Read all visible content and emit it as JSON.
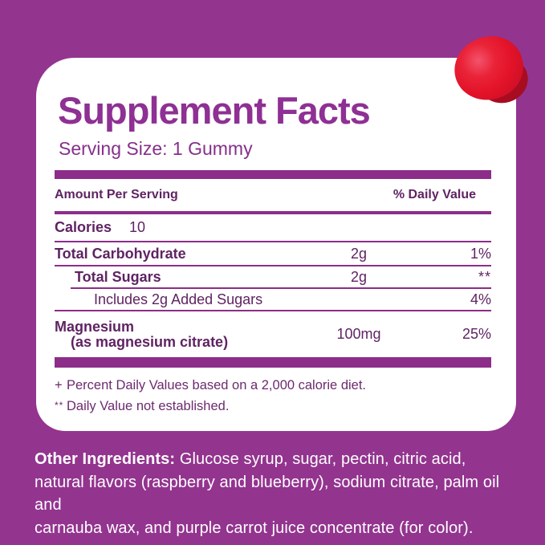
{
  "title": "Supplement Facts",
  "serving_size": "Serving Size: 1 Gummy",
  "table": {
    "header": {
      "amount": "Amount Per Serving",
      "dv": "% Daily Value"
    },
    "rows": [
      {
        "name": "Calories",
        "inline_value": "10"
      },
      {
        "name": "Total Carbohydrate",
        "amount": "2g",
        "dv": "1%"
      },
      {
        "name": "Total Sugars",
        "amount": "2g",
        "dv": "**"
      },
      {
        "name": "Includes 2g Added Sugars",
        "dv": "4%"
      },
      {
        "name": "Magnesium",
        "sub": "(as magnesium citrate)",
        "amount": "100mg",
        "dv": "25%"
      }
    ],
    "footnotes": [
      {
        "symbol": "+",
        "text": "Percent Daily Values based on a 2,000 calorie diet."
      },
      {
        "symbol": "**",
        "text": "Daily Value not established."
      }
    ]
  },
  "other_ingredients": {
    "label": "Other Ingredients:",
    "lines": [
      " Glucose syrup, sugar, pectin, citric acid,",
      "natural flavors (raspberry and blueberry), sodium citrate, palm oil and",
      "carnauba wax, and purple carrot juice concentrate (for color)."
    ]
  },
  "icons": {
    "gummy": "red-gummy-candy"
  },
  "colors": {
    "background": "#93348f",
    "card": "#ffffff",
    "accent_bars": "#8c2d89",
    "title_text": "#8e3094",
    "table_text": "#5f2363",
    "ingredients_text": "#ffffff",
    "gummy_red": "#e31329"
  }
}
